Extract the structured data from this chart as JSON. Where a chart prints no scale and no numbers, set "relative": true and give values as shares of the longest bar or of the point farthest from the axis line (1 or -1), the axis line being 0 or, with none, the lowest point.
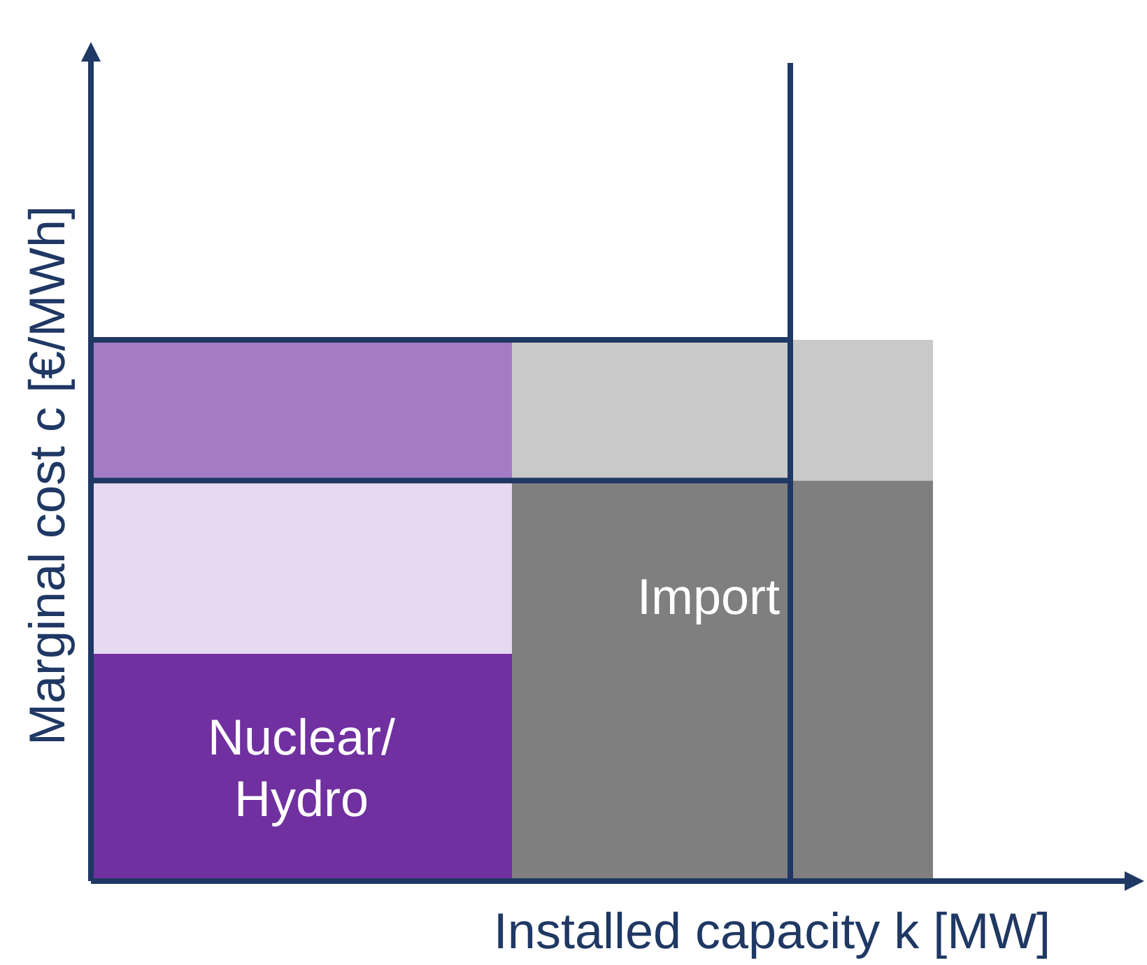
{
  "chart_data": {
    "type": "bar",
    "relative": true,
    "stacked": true,
    "xlabel": "Installed capacity k [MW]",
    "ylabel": "Marginal cost c [€/MWh]",
    "categories": [
      "Nuclear/\nHydro",
      "Import"
    ],
    "series": [
      {
        "colors": [
          "#7030a0",
          "#7f7f7f"
        ],
        "values": [
          0.42,
          0.74
        ]
      },
      {
        "colors": [
          "#e6d9f1",
          null
        ],
        "values": [
          0.32,
          null
        ]
      },
      {
        "colors": [
          "#a47cc6",
          "#c9c9c9"
        ],
        "values": [
          0.26,
          0.26
        ]
      }
    ],
    "ref_lines": [
      {
        "axis": "y",
        "value": 0.74,
        "color": "#1f3864"
      },
      {
        "axis": "y",
        "value": 1,
        "color": "#1f3864"
      }
    ]
  }
}
